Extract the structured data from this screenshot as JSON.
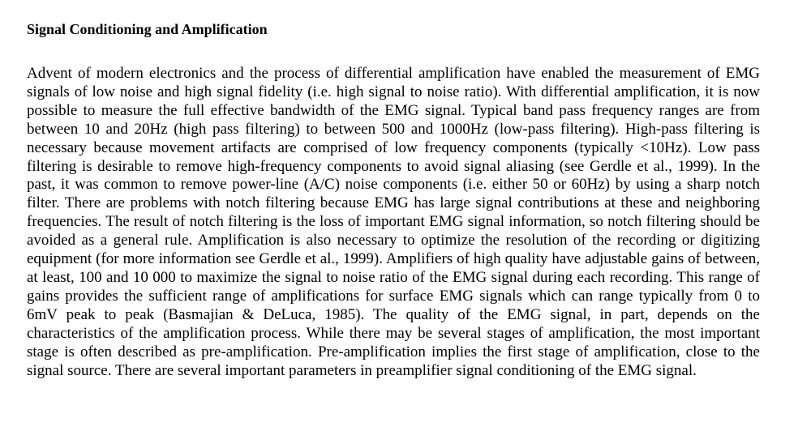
{
  "document": {
    "heading": "Signal Conditioning and Amplification",
    "paragraph": "Advent of modern electronics and the process of differential amplification have enabled the measurement of EMG signals of low noise and high signal fidelity (i.e. high signal to noise ratio). With differential amplification, it is now possible to measure the full effective bandwidth of the EMG signal. Typical band pass frequency ranges are from between 10 and 20Hz (high pass filtering) to between 500 and 1000Hz (low-pass filtering). High-pass filtering is necessary because movement artifacts are comprised of low frequency components (typically <10Hz). Low pass filtering is desirable to remove high-frequency components to avoid signal aliasing (see Gerdle et al., 1999). In the past, it was common to remove power-line (A/C) noise components (i.e. either 50 or 60Hz) by using a sharp notch filter.  There are problems with notch filtering because EMG has large signal contributions at these and neighboring frequencies. The result of notch filtering is the loss of important EMG signal information, so notch filtering should be avoided as a general rule. Amplification is also necessary to optimize the resolution of the recording or digitizing equipment (for more information see Gerdle et al., 1999). Amplifiers of high quality have adjustable gains of between, at least, 100 and 10 000 to maximize the signal to noise ratio of the EMG signal during each recording. This range of gains provides the sufficient range of amplifications for surface EMG signals which can range typically from 0 to 6mV peak to peak (Basmajian & DeLuca, 1985). The quality of the EMG signal, in part, depends on the characteristics of the amplification process. While there may be several stages of amplification, the most important stage is often described as pre-amplification. Pre-amplification implies the first stage of amplification, close to the signal source. There are several important parameters in preamplifier signal conditioning of the EMG signal."
  }
}
